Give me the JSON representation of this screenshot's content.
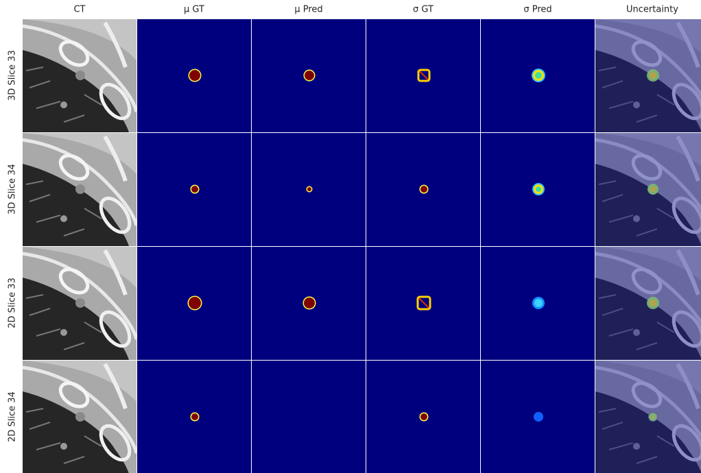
{
  "columns": [
    "CT",
    "μ GT",
    "μ Pred",
    "σ GT",
    "σ Pred",
    "Uncertainty"
  ],
  "rows": [
    "3D Slice 33",
    "3D Slice 34",
    "2D Slice 33",
    "2D Slice 34"
  ]
}
